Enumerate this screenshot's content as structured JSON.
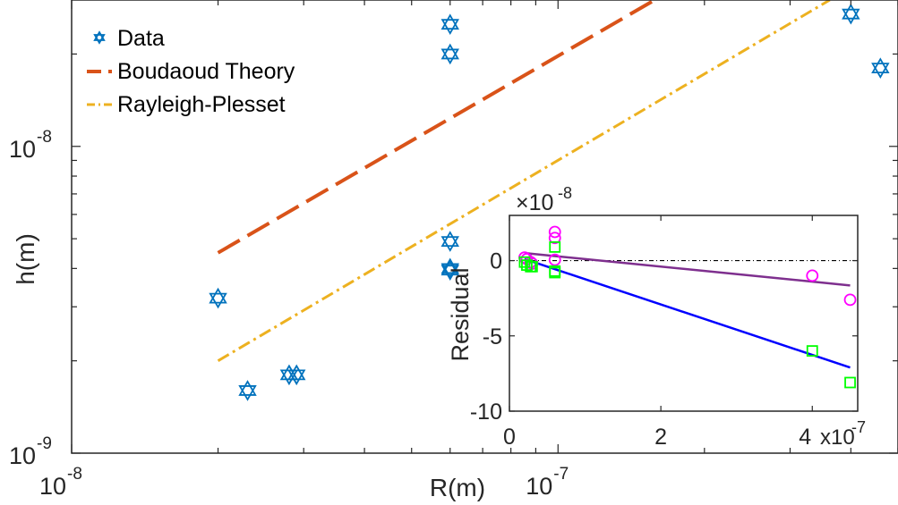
{
  "chart_data": [
    {
      "type": "scatter",
      "xscale": "log",
      "yscale": "log",
      "xlim": [
        1e-08,
        5e-07
      ],
      "ylim": [
        1e-09,
        3e-08
      ],
      "xlabel": "R(m)",
      "ylabel": "h(m)",
      "x_ticks": [
        {
          "value": 1e-08,
          "base": "10",
          "exp": "-8"
        },
        {
          "value": 1e-07,
          "base": "10",
          "exp": "-7"
        }
      ],
      "y_ticks": [
        {
          "value": 1e-09,
          "base": "10",
          "exp": "-9"
        },
        {
          "value": 1e-08,
          "base": "10",
          "exp": "-8"
        }
      ],
      "grid": false,
      "legend_position": "top-left",
      "series": [
        {
          "name": "Data",
          "kind": "markers",
          "marker": "hexagram",
          "color": "#0072BD",
          "points": [
            [
              2e-08,
              3.2e-09
            ],
            [
              2.3e-08,
              1.6e-09
            ],
            [
              2.8e-08,
              1.8e-09
            ],
            [
              2.9e-08,
              1.8e-09
            ],
            [
              6e-08,
              2.5e-08
            ],
            [
              6e-08,
              2e-08
            ],
            [
              6e-08,
              4.9e-09
            ],
            [
              6e-08,
              4e-09
            ],
            [
              6e-08,
              3.95e-09
            ],
            [
              4e-07,
              2.7e-08
            ],
            [
              4.6e-07,
              1.8e-08
            ]
          ]
        },
        {
          "name": "Boudaoud Theory",
          "kind": "line",
          "dash": "dashed",
          "color": "#D95319",
          "points": [
            [
              2e-08,
              4.5e-09
            ],
            [
              1.58e-07,
              3e-08
            ]
          ]
        },
        {
          "name": "Rayleigh-Plesset",
          "kind": "line",
          "dash": "dashdot",
          "color": "#EDB120",
          "points": [
            [
              2e-08,
              2e-09
            ],
            [
              3.62e-07,
              3e-08
            ]
          ]
        }
      ]
    },
    {
      "type": "scatter",
      "xlim": [
        0,
        4.6e-07
      ],
      "ylim": [
        -10,
        3
      ],
      "ylabel": "Residual",
      "y_multiplier": "×10",
      "y_multiplier_exp": "-8",
      "x_multiplier": "x10",
      "x_multiplier_exp": "-7",
      "y_ticks": [
        {
          "value": 0,
          "label": "0"
        },
        {
          "value": -5,
          "label": "-5"
        },
        {
          "value": -10,
          "label": "-10"
        }
      ],
      "x_ticks": [
        {
          "value": 0,
          "label": "0"
        },
        {
          "value": 2e-07,
          "label": "2"
        },
        {
          "value": 4e-07,
          "label": "4"
        }
      ],
      "zero_line": true,
      "series": [
        {
          "kind": "markers",
          "marker": "circle",
          "color": "#FF00FF",
          "points": [
            [
              2e-08,
              0.2
            ],
            [
              2.3e-08,
              0.1
            ],
            [
              2.8e-08,
              -0.1
            ],
            [
              3e-08,
              -0.2
            ],
            [
              6e-08,
              1.9
            ],
            [
              6e-08,
              1.5
            ],
            [
              6e-08,
              0.05
            ],
            [
              4e-07,
              -1.0
            ],
            [
              4.5e-07,
              -2.6
            ]
          ]
        },
        {
          "kind": "markers",
          "marker": "square",
          "color": "#00FF00",
          "points": [
            [
              2e-08,
              -0.1
            ],
            [
              2.3e-08,
              -0.3
            ],
            [
              2.8e-08,
              -0.4
            ],
            [
              3e-08,
              -0.4
            ],
            [
              6e-08,
              0.9
            ],
            [
              6e-08,
              -0.7
            ],
            [
              6e-08,
              -0.8
            ],
            [
              4e-07,
              -6.0
            ],
            [
              4.5e-07,
              -8.1
            ]
          ]
        },
        {
          "kind": "line",
          "color": "#7E2F8E",
          "points": [
            [
              2e-08,
              0.5
            ],
            [
              4.5e-07,
              -1.65
            ]
          ]
        },
        {
          "kind": "line",
          "color": "#0000FF",
          "points": [
            [
              2e-08,
              0.1
            ],
            [
              4.5e-07,
              -7.1
            ]
          ]
        }
      ]
    }
  ]
}
